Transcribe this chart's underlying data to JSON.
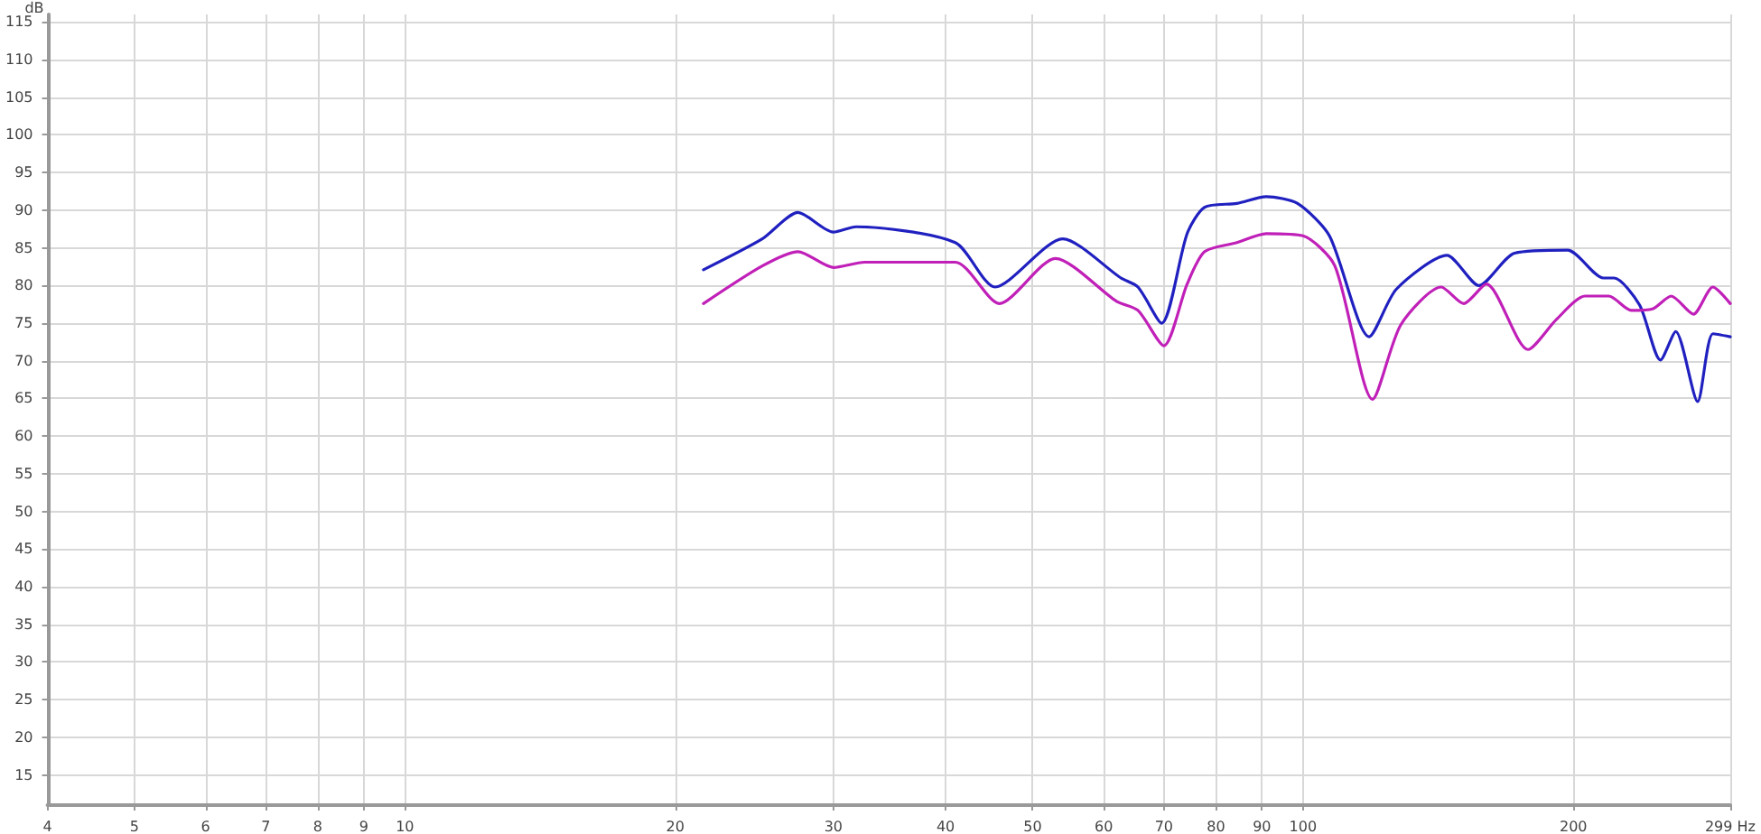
{
  "chart_data": {
    "type": "line",
    "ylabel": "dB",
    "log": "x",
    "grid": true,
    "marker": "none",
    "line_style": "solid",
    "xlim": [
      4,
      299
    ],
    "xticks": [
      4,
      5,
      6,
      7,
      8,
      9,
      10,
      20,
      30,
      40,
      50,
      60,
      70,
      80,
      90,
      100,
      200,
      {
        "value": 299,
        "label": "299 Hz"
      }
    ],
    "ylim": [
      11,
      116
    ],
    "yticks": [
      15,
      20,
      25,
      30,
      35,
      40,
      45,
      50,
      55,
      60,
      65,
      70,
      75,
      80,
      85,
      90,
      95,
      100,
      105,
      110,
      115
    ],
    "series": [
      {
        "color": "#2020c0",
        "x": [
          21.5,
          25,
          27.4,
          30,
          31.8,
          41,
          45.4,
          54,
          62.7,
          65.5,
          69.6,
          74.3,
          77.7,
          84.4,
          91,
          98.6,
          107,
          118.5,
          127,
          144.6,
          157,
          172,
          197,
          216,
          222,
          237,
          250,
          260,
          275,
          286,
          299
        ],
        "values": [
          82.1,
          86.2,
          89.7,
          87.1,
          87.8,
          85.7,
          79.8,
          86.2,
          81,
          79.8,
          75,
          86.9,
          90.4,
          90.9,
          91.8,
          90.9,
          86.6,
          73.2,
          79.5,
          84,
          80,
          84.3,
          84.7,
          81,
          81,
          77.4,
          70.1,
          73.9,
          64.6,
          73.6,
          73.2
        ]
      },
      {
        "color": "#c020b8",
        "x": [
          21.5,
          25,
          27.4,
          30,
          32.5,
          41,
          45.9,
          53,
          62,
          65.5,
          70,
          74.3,
          77.7,
          84.4,
          91,
          100,
          108.5,
          119.5,
          128.5,
          142.5,
          151,
          160,
          178,
          191.5,
          206,
          219,
          232,
          245,
          257,
          272,
          286,
          299
        ],
        "values": [
          77.6,
          82.6,
          84.5,
          82.4,
          83.1,
          83.1,
          77.6,
          83.6,
          77.9,
          76.7,
          72,
          80.2,
          84.5,
          85.7,
          86.9,
          86.6,
          82.6,
          64.9,
          74.8,
          79.8,
          77.6,
          80.2,
          71.5,
          75.5,
          78.6,
          78.6,
          76.7,
          76.9,
          78.6,
          76.2,
          79.8,
          77.6
        ]
      }
    ]
  }
}
